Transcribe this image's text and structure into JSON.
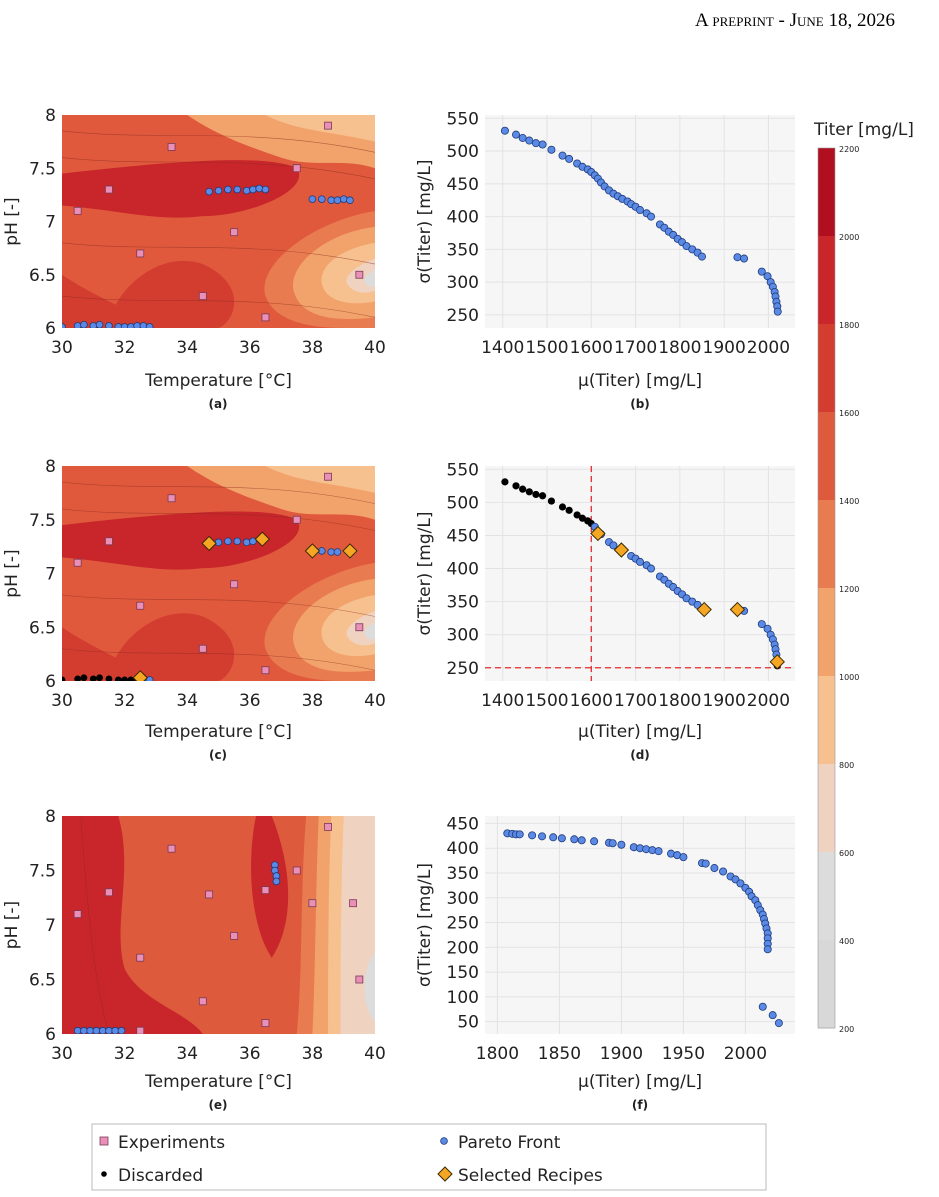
{
  "header": {
    "text": "A preprint - June 18, 2026"
  },
  "colorbar": {
    "title": "Titer [mg/L]",
    "ticks": [
      "2200",
      "2000",
      "1800",
      "1600",
      "1400",
      "1200",
      "1000",
      "800",
      "600",
      "400",
      "200"
    ],
    "colors": [
      "#b10e1f",
      "#c8262b",
      "#d23d30",
      "#dd5a3d",
      "#e87b4f",
      "#f2a36b",
      "#f6c08f",
      "#f0d2c0",
      "#dcdcdc",
      "#d8d8d8"
    ]
  },
  "legend": [
    {
      "key": "experiments",
      "label": "Experiments"
    },
    {
      "key": "pareto",
      "label": "Pareto Front"
    },
    {
      "key": "discarded",
      "label": "Discarded"
    },
    {
      "key": "selected",
      "label": "Selected Recipes"
    }
  ],
  "colors": {
    "experiment": "#e98fb8",
    "pareto": "#5b8ae6",
    "discarded": "#000000",
    "selected": "#f5a623",
    "threshold": "#e52b2b"
  },
  "chart_data": [
    {
      "type": "heatmap",
      "panel_label": "(a)",
      "xlabel": "Temperature [°C]",
      "ylabel": "pH [-]",
      "xlim": [
        30,
        40
      ],
      "ylim": [
        6,
        8
      ],
      "xticks": [
        "30",
        "32",
        "34",
        "36",
        "38",
        "40"
      ],
      "yticks": [
        "6",
        "6.5",
        "7",
        "7.5",
        "8"
      ],
      "experiments": [
        [
          33.5,
          7.7
        ],
        [
          31.5,
          7.3
        ],
        [
          30.5,
          7.1
        ],
        [
          32.5,
          6.7
        ],
        [
          34.5,
          6.3
        ],
        [
          35.5,
          6.9
        ],
        [
          36.5,
          6.1
        ],
        [
          37.5,
          7.5
        ],
        [
          38.5,
          7.9
        ],
        [
          39.5,
          6.5
        ]
      ],
      "pareto": [
        [
          30.0,
          6.01
        ],
        [
          30.5,
          6.02
        ],
        [
          30.7,
          6.03
        ],
        [
          31.0,
          6.02
        ],
        [
          31.2,
          6.03
        ],
        [
          31.5,
          6.02
        ],
        [
          31.8,
          6.01
        ],
        [
          32.0,
          6.01
        ],
        [
          32.2,
          6.01
        ],
        [
          32.4,
          6.02
        ],
        [
          32.6,
          6.02
        ],
        [
          32.8,
          6.01
        ],
        [
          34.7,
          7.28
        ],
        [
          35.0,
          7.29
        ],
        [
          35.3,
          7.3
        ],
        [
          35.6,
          7.3
        ],
        [
          35.9,
          7.29
        ],
        [
          36.1,
          7.3
        ],
        [
          36.3,
          7.31
        ],
        [
          36.5,
          7.3
        ],
        [
          38.0,
          7.21
        ],
        [
          38.3,
          7.21
        ],
        [
          38.6,
          7.2
        ],
        [
          38.8,
          7.2
        ],
        [
          39.0,
          7.21
        ],
        [
          39.2,
          7.2
        ]
      ]
    },
    {
      "type": "scatter",
      "panel_label": "(b)",
      "xlabel": "μ(Titer) [mg/L]",
      "ylabel": "σ(Titer) [mg/L]",
      "xlim": [
        1360,
        2060
      ],
      "ylim": [
        230,
        555
      ],
      "xticks": [
        1400,
        1500,
        1600,
        1700,
        1800,
        1900,
        2000
      ],
      "yticks": [
        250,
        300,
        350,
        400,
        450,
        500,
        550
      ],
      "pareto": [
        [
          1405,
          531
        ],
        [
          1430,
          525
        ],
        [
          1445,
          520
        ],
        [
          1460,
          516
        ],
        [
          1475,
          512
        ],
        [
          1490,
          510
        ],
        [
          1510,
          502
        ],
        [
          1535,
          493
        ],
        [
          1550,
          488
        ],
        [
          1568,
          481
        ],
        [
          1580,
          476
        ],
        [
          1592,
          472
        ],
        [
          1600,
          468
        ],
        [
          1608,
          463
        ],
        [
          1615,
          458
        ],
        [
          1622,
          452
        ],
        [
          1630,
          446
        ],
        [
          1640,
          440
        ],
        [
          1650,
          435
        ],
        [
          1660,
          431
        ],
        [
          1670,
          427
        ],
        [
          1682,
          423
        ],
        [
          1690,
          419
        ],
        [
          1700,
          415
        ],
        [
          1710,
          410
        ],
        [
          1725,
          405
        ],
        [
          1735,
          400
        ],
        [
          1755,
          388
        ],
        [
          1765,
          383
        ],
        [
          1775,
          377
        ],
        [
          1785,
          372
        ],
        [
          1795,
          366
        ],
        [
          1805,
          361
        ],
        [
          1815,
          355
        ],
        [
          1828,
          350
        ],
        [
          1840,
          345
        ],
        [
          1850,
          339
        ],
        [
          1930,
          338
        ],
        [
          1945,
          336
        ],
        [
          1985,
          316
        ],
        [
          1998,
          309
        ],
        [
          2005,
          300
        ],
        [
          2010,
          293
        ],
        [
          2014,
          285
        ],
        [
          2016,
          278
        ],
        [
          2018,
          270
        ],
        [
          2020,
          263
        ],
        [
          2021,
          255
        ]
      ]
    },
    {
      "type": "heatmap",
      "panel_label": "(c)",
      "xlabel": "Temperature [°C]",
      "ylabel": "pH [-]",
      "xlim": [
        30,
        40
      ],
      "ylim": [
        6,
        8
      ],
      "xticks": [
        "30",
        "32",
        "34",
        "36",
        "38",
        "40"
      ],
      "yticks": [
        "6",
        "6.5",
        "7",
        "7.5",
        "8"
      ],
      "experiments": [
        [
          33.5,
          7.7
        ],
        [
          31.5,
          7.3
        ],
        [
          30.5,
          7.1
        ],
        [
          32.5,
          6.7
        ],
        [
          34.5,
          6.3
        ],
        [
          35.5,
          6.9
        ],
        [
          36.5,
          6.1
        ],
        [
          37.5,
          7.5
        ],
        [
          38.5,
          7.9
        ],
        [
          39.5,
          6.5
        ]
      ],
      "discarded": [
        [
          30.0,
          6.01
        ],
        [
          30.5,
          6.02
        ],
        [
          30.7,
          6.03
        ],
        [
          31.0,
          6.02
        ],
        [
          31.2,
          6.03
        ],
        [
          31.5,
          6.02
        ],
        [
          31.8,
          6.01
        ],
        [
          32.0,
          6.01
        ],
        [
          32.2,
          6.01
        ],
        [
          32.4,
          6.02
        ]
      ],
      "pareto": [
        [
          32.6,
          6.02
        ],
        [
          32.8,
          6.01
        ],
        [
          35.0,
          7.29
        ],
        [
          35.3,
          7.3
        ],
        [
          35.6,
          7.3
        ],
        [
          35.9,
          7.29
        ],
        [
          36.1,
          7.3
        ],
        [
          38.3,
          7.21
        ],
        [
          38.6,
          7.2
        ],
        [
          38.8,
          7.2
        ]
      ],
      "selected": [
        [
          32.5,
          6.03
        ],
        [
          34.7,
          7.28
        ],
        [
          36.4,
          7.32
        ],
        [
          38.0,
          7.21
        ],
        [
          39.2,
          7.21
        ]
      ]
    },
    {
      "type": "scatter",
      "panel_label": "(d)",
      "xlabel": "μ(Titer) [mg/L]",
      "ylabel": "σ(Titer) [mg/L]",
      "xlim": [
        1360,
        2060
      ],
      "ylim": [
        230,
        555
      ],
      "xticks": [
        1400,
        1500,
        1600,
        1700,
        1800,
        1900,
        2000
      ],
      "yticks": [
        250,
        300,
        350,
        400,
        450,
        500,
        550
      ],
      "threshold_x": 1600,
      "threshold_y": 250,
      "discarded": [
        [
          1405,
          531
        ],
        [
          1430,
          525
        ],
        [
          1445,
          520
        ],
        [
          1460,
          516
        ],
        [
          1475,
          512
        ],
        [
          1490,
          510
        ],
        [
          1510,
          502
        ],
        [
          1535,
          493
        ],
        [
          1550,
          488
        ],
        [
          1568,
          481
        ],
        [
          1580,
          476
        ],
        [
          1592,
          472
        ],
        [
          1600,
          468
        ],
        [
          2020,
          253
        ]
      ],
      "pareto": [
        [
          1608,
          463
        ],
        [
          1622,
          452
        ],
        [
          1640,
          440
        ],
        [
          1650,
          435
        ],
        [
          1690,
          419
        ],
        [
          1700,
          415
        ],
        [
          1710,
          410
        ],
        [
          1725,
          405
        ],
        [
          1735,
          400
        ],
        [
          1755,
          388
        ],
        [
          1765,
          383
        ],
        [
          1775,
          377
        ],
        [
          1785,
          372
        ],
        [
          1795,
          366
        ],
        [
          1805,
          361
        ],
        [
          1815,
          355
        ],
        [
          1828,
          350
        ],
        [
          1840,
          345
        ],
        [
          1945,
          336
        ],
        [
          1985,
          316
        ],
        [
          1998,
          309
        ],
        [
          2005,
          300
        ],
        [
          2010,
          293
        ],
        [
          2014,
          285
        ],
        [
          2016,
          278
        ],
        [
          2018,
          270
        ]
      ],
      "selected": [
        [
          1615,
          453
        ],
        [
          1668,
          428
        ],
        [
          1855,
          338
        ],
        [
          1930,
          338
        ],
        [
          2020,
          259
        ]
      ]
    },
    {
      "type": "heatmap",
      "panel_label": "(e)",
      "xlabel": "Temperature [°C]",
      "ylabel": "pH [-]",
      "xlim": [
        30,
        40
      ],
      "ylim": [
        6,
        8
      ],
      "xticks": [
        "30",
        "32",
        "34",
        "36",
        "38",
        "40"
      ],
      "yticks": [
        "6",
        "6.5",
        "7",
        "7.5",
        "8"
      ],
      "experiments": [
        [
          33.5,
          7.7
        ],
        [
          31.5,
          7.3
        ],
        [
          30.5,
          7.1
        ],
        [
          32.5,
          6.7
        ],
        [
          34.5,
          6.3
        ],
        [
          35.5,
          6.9
        ],
        [
          36.5,
          6.1
        ],
        [
          37.5,
          7.5
        ],
        [
          38.5,
          7.9
        ],
        [
          39.5,
          6.5
        ],
        [
          38.0,
          7.2
        ],
        [
          39.3,
          7.2
        ],
        [
          34.7,
          7.28
        ],
        [
          36.5,
          7.32
        ],
        [
          32.5,
          6.03
        ]
      ],
      "pareto": [
        [
          30.5,
          6.03
        ],
        [
          30.7,
          6.03
        ],
        [
          30.9,
          6.03
        ],
        [
          31.1,
          6.03
        ],
        [
          31.3,
          6.03
        ],
        [
          31.5,
          6.03
        ],
        [
          31.7,
          6.03
        ],
        [
          31.9,
          6.03
        ],
        [
          36.8,
          7.55
        ],
        [
          36.8,
          7.5
        ],
        [
          36.85,
          7.45
        ],
        [
          36.85,
          7.4
        ]
      ]
    },
    {
      "type": "scatter",
      "panel_label": "(f)",
      "xlabel": "μ(Titer) [mg/L]",
      "ylabel": "σ(Titer) [mg/L]",
      "xlim": [
        1790,
        2040
      ],
      "ylim": [
        25,
        465
      ],
      "xticks": [
        1800,
        1850,
        1900,
        1950,
        2000
      ],
      "yticks": [
        50,
        100,
        150,
        200,
        250,
        300,
        350,
        400,
        450
      ],
      "pareto": [
        [
          1808,
          430
        ],
        [
          1812,
          429
        ],
        [
          1815,
          428
        ],
        [
          1818,
          428
        ],
        [
          1828,
          426
        ],
        [
          1836,
          424
        ],
        [
          1845,
          422
        ],
        [
          1852,
          420
        ],
        [
          1862,
          418
        ],
        [
          1868,
          416
        ],
        [
          1878,
          414
        ],
        [
          1890,
          411
        ],
        [
          1893,
          410
        ],
        [
          1900,
          407
        ],
        [
          1910,
          402
        ],
        [
          1915,
          400
        ],
        [
          1920,
          398
        ],
        [
          1925,
          396
        ],
        [
          1930,
          394
        ],
        [
          1940,
          389
        ],
        [
          1945,
          386
        ],
        [
          1950,
          382
        ],
        [
          1965,
          370
        ],
        [
          1968,
          369
        ],
        [
          1975,
          360
        ],
        [
          1982,
          353
        ],
        [
          1988,
          343
        ],
        [
          1992,
          337
        ],
        [
          1996,
          329
        ],
        [
          2000,
          320
        ],
        [
          2003,
          312
        ],
        [
          2005,
          303
        ],
        [
          2008,
          295
        ],
        [
          2010,
          285
        ],
        [
          2012,
          275
        ],
        [
          2014,
          266
        ],
        [
          2015,
          257
        ],
        [
          2016,
          248
        ],
        [
          2017,
          238
        ],
        [
          2018,
          228
        ],
        [
          2018,
          218
        ],
        [
          2018,
          207
        ],
        [
          2018,
          196
        ],
        [
          2014,
          80
        ],
        [
          2022,
          63
        ],
        [
          2027,
          47
        ]
      ]
    }
  ]
}
